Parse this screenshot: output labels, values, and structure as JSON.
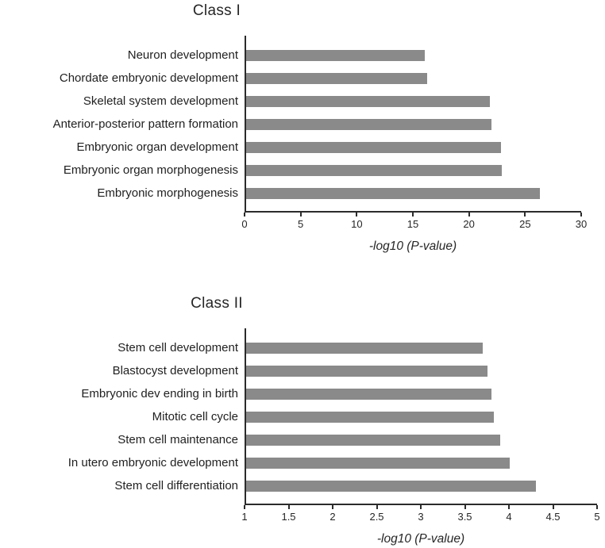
{
  "chart_data": [
    {
      "type": "bar",
      "orientation": "horizontal",
      "title": "Class I",
      "xlabel": "-log10 (P-value)",
      "categories": [
        "Neuron development",
        "Chordate embryonic development",
        "Skeletal system development",
        "Anterior-posterior pattern formation",
        "Embryonic organ development",
        "Embryonic organ morphogenesis",
        "Embryonic morphogenesis"
      ],
      "values": [
        16,
        16.2,
        21.8,
        22,
        22.8,
        22.9,
        26.3
      ],
      "xmin": 0,
      "xmax": 30,
      "xticks": [
        "0",
        "5",
        "10",
        "15",
        "20",
        "25",
        "30"
      ],
      "bar_color": "#8a8a8a",
      "grid": "off",
      "legend": "none"
    },
    {
      "type": "bar",
      "orientation": "horizontal",
      "title": "Class II",
      "xlabel": "-log10 (P-value)",
      "categories": [
        "Stem cell development",
        "Blastocyst development",
        "Embryonic dev ending in birth",
        "Mitotic cell cycle",
        "Stem cell maintenance",
        "In utero embryonic development",
        "Stem cell differentiation"
      ],
      "values": [
        3.7,
        3.75,
        3.8,
        3.82,
        3.9,
        4.0,
        4.3
      ],
      "xmin": 1,
      "xmax": 5,
      "xticks": [
        "1",
        "1.5",
        "2",
        "2.5",
        "3",
        "3.5",
        "4",
        "4.5",
        "5"
      ],
      "bar_color": "#8a8a8a",
      "grid": "off",
      "legend": "none"
    }
  ]
}
